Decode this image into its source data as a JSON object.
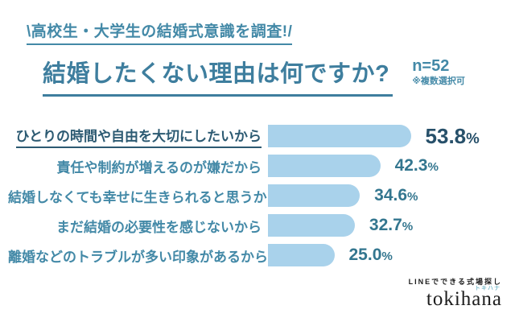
{
  "header": {
    "slogan": "\\高校生・大学生の結婚式意識を調査!/",
    "title": "結婚したくない理由は何ですか?",
    "sample_size": "n=52",
    "note": "※複数選択可"
  },
  "chart_data": {
    "type": "bar",
    "orientation": "horizontal",
    "title": "結婚したくない理由は何ですか?",
    "sample_size": "n=52",
    "note": "※複数選択可",
    "unit": "%",
    "categories": [
      "ひとりの時間や自由を大切にしたいから",
      "責任や制約が増えるのが嫌だから",
      "結婚しなくても幸せに生きられると思うから",
      "まだ結婚の必要性を感じないから",
      "離婚などのトラブルが多い印象があるから"
    ],
    "values": [
      53.8,
      42.3,
      34.6,
      32.7,
      25.0
    ],
    "values_display": [
      "53.8",
      "42.3",
      "34.6",
      "32.7",
      "25.0"
    ],
    "xlim": [
      0,
      60
    ],
    "highlight_index": 0,
    "legend": "none",
    "grid": false,
    "bar_color": "#a9d2eb",
    "label_color": "#4389a7",
    "highlight_label_color": "#2c5a72",
    "value_color": "#33768f",
    "highlight_value_color": "#27506a"
  },
  "footer": {
    "tagline": "LINEでできる式場探し",
    "brand": "tokihana",
    "brand_ruby": "トキハナ"
  }
}
